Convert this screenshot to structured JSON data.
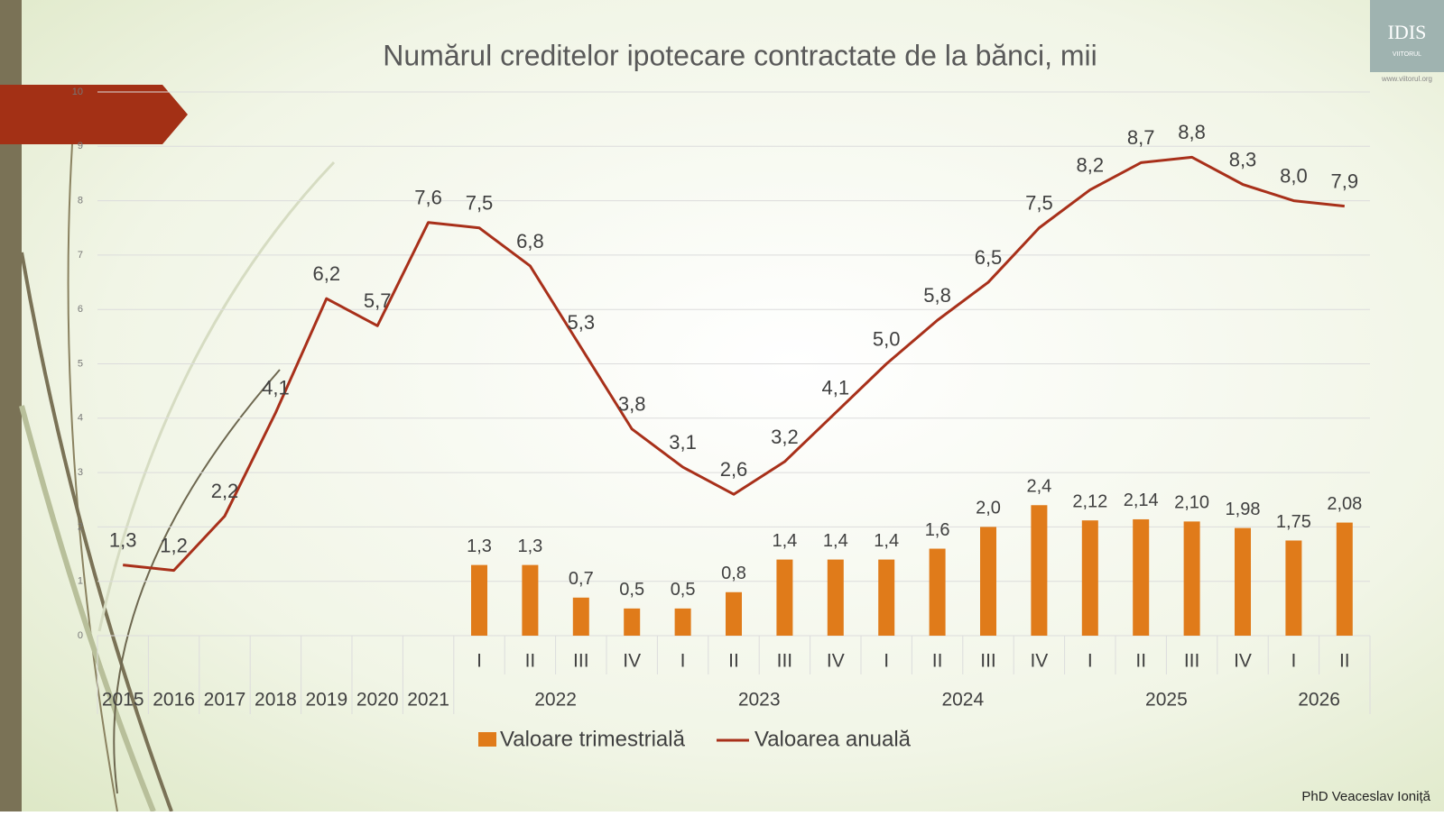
{
  "slide": {
    "author": "PhD Veaceslav Ioniță",
    "logo": "IDIS",
    "logo_sub": "VIITORUL",
    "website": "www.viitorul.org"
  },
  "chart_data": {
    "type": "combo",
    "title": "Numărul creditelor ipotecare contractate de la bănci, mii",
    "categories": [
      "2015",
      "2016",
      "2017",
      "2018",
      "2019",
      "2020",
      "2021",
      "I",
      "II",
      "III",
      "IV",
      "I",
      "II",
      "III",
      "IV",
      "I",
      "II",
      "III",
      "IV",
      "I",
      "II",
      "III",
      "IV",
      "I",
      "II"
    ],
    "category_groups": [
      {
        "label": "2022",
        "span": 4
      },
      {
        "label": "2023",
        "span": 4
      },
      {
        "label": "2024",
        "span": 4
      },
      {
        "label": "2025",
        "span": 4
      },
      {
        "label": "2026",
        "span": 2
      }
    ],
    "series": [
      {
        "name": "Valoare trimestrială",
        "type": "bar",
        "color": "#e07b1a",
        "values": [
          null,
          null,
          null,
          null,
          null,
          null,
          null,
          1.3,
          1.3,
          0.7,
          0.5,
          0.5,
          0.8,
          1.4,
          1.4,
          1.4,
          1.6,
          2.0,
          2.4,
          2.12,
          2.14,
          2.1,
          1.98,
          1.75,
          2.08
        ],
        "value_labels": [
          null,
          null,
          null,
          null,
          null,
          null,
          null,
          "1,3",
          "1,3",
          "0,7",
          "0,5",
          "0,5",
          "0,8",
          "1,4",
          "1,4",
          "1,4",
          "1,6",
          "2,0",
          "2,4",
          "2,12",
          "2,14",
          "2,10",
          "1,98",
          "1,75",
          "2,08"
        ]
      },
      {
        "name": "Valoarea anuală",
        "type": "line",
        "color": "#a8301a",
        "values": [
          1.3,
          1.2,
          2.2,
          4.1,
          6.2,
          5.7,
          7.6,
          7.5,
          6.8,
          5.3,
          3.8,
          3.1,
          2.6,
          3.2,
          4.1,
          5.0,
          5.8,
          6.5,
          7.5,
          8.2,
          8.7,
          8.8,
          8.3,
          8.0,
          7.9
        ],
        "value_labels": [
          "1,3",
          "1,2",
          "2,2",
          "4,1",
          "6,2",
          "5,7",
          "7,6",
          "7,5",
          "6,8",
          "5,3",
          "3,8",
          "3,1",
          "2,6",
          "3,2",
          "4,1",
          "5,0",
          "5,8",
          "6,5",
          "7,5",
          "8,2",
          "8,7",
          "8,8",
          "8,3",
          "8,0",
          "7,9"
        ]
      }
    ],
    "ylim": [
      0,
      10
    ],
    "yticks": [
      0,
      1,
      2,
      3,
      4,
      5,
      6,
      7,
      8,
      9,
      10
    ],
    "grid": true,
    "legend": "bottom"
  }
}
